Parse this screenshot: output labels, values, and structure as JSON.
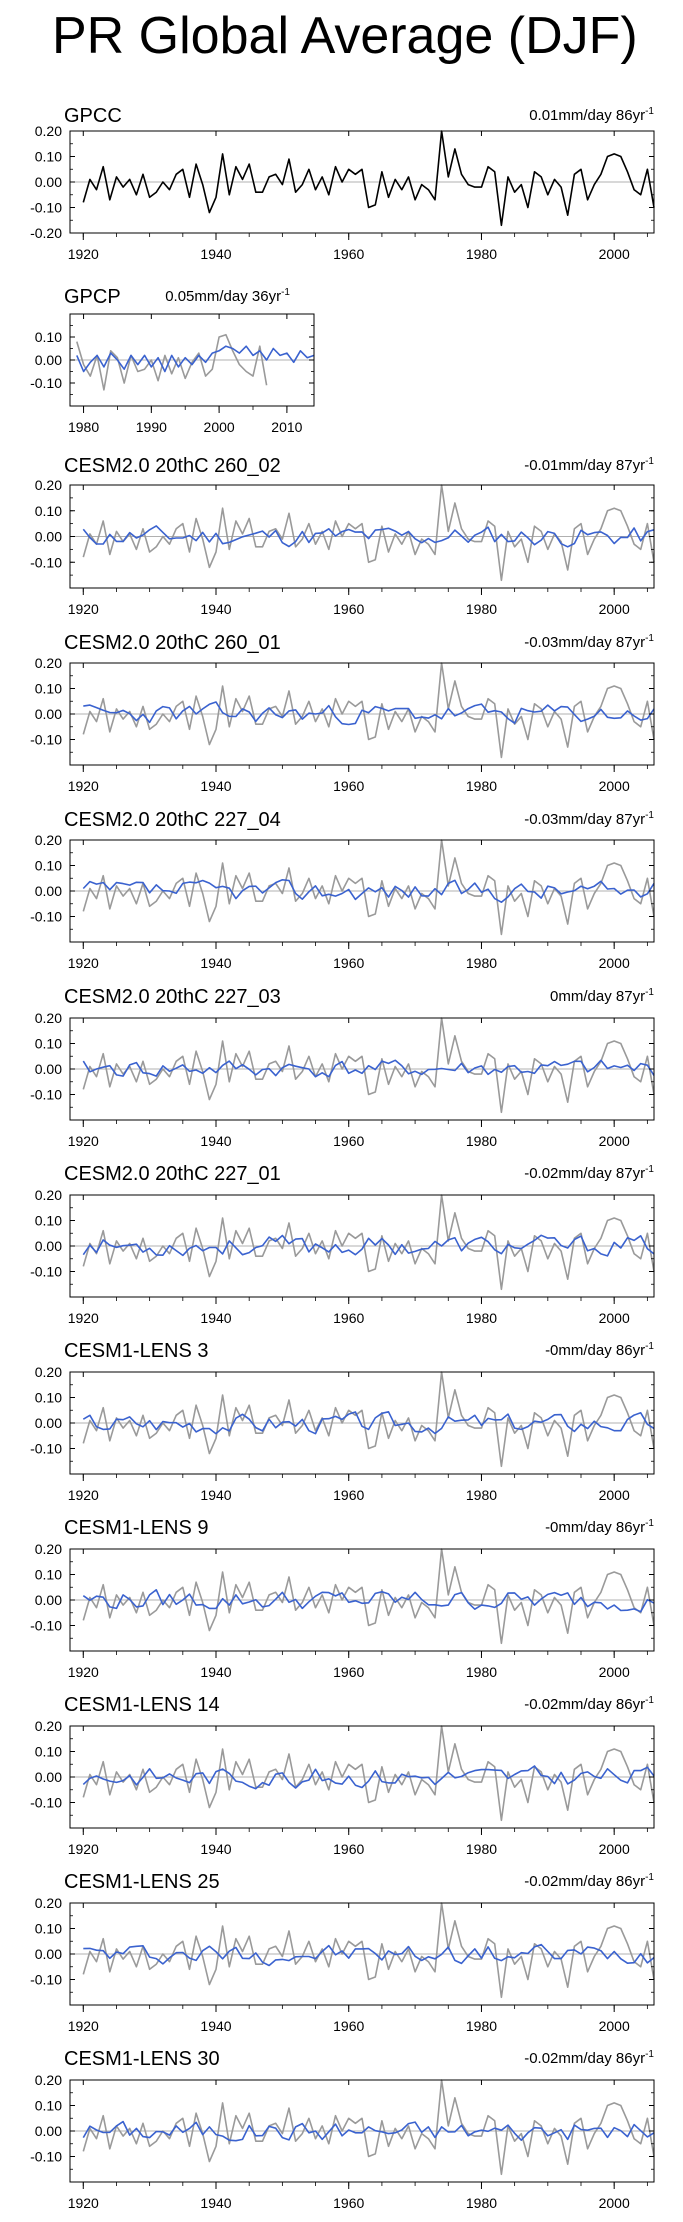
{
  "title": "PR Global Average (DJF)",
  "colors": {
    "observed": "#000000",
    "observed_overlay": "#9a9a9a",
    "model": "#3a62cf",
    "zero_line": "#b0b0b0"
  },
  "chart_data": [
    {
      "type": "line",
      "title": "GPCC",
      "trend_label": "0.01mm/day 86yr",
      "trend_superscript": "-1",
      "xlim": [
        1918,
        2006
      ],
      "ylim": [
        -0.2,
        0.2
      ],
      "yticks": [
        "0.20",
        "0.10",
        "0.00",
        "-0.10",
        "-0.20"
      ],
      "ytick_values": [
        0.2,
        0.1,
        0.0,
        -0.1,
        -0.2
      ],
      "xticks": [
        "1920",
        "1940",
        "1960",
        "1980",
        "2000"
      ],
      "xtick_values": [
        1920,
        1940,
        1960,
        1980,
        2000
      ],
      "series": [
        {
          "name": "GPCC",
          "role": "observed",
          "x_start": 1920,
          "values": [
            -0.08,
            0.01,
            -0.03,
            0.06,
            -0.07,
            0.02,
            -0.02,
            0.01,
            -0.05,
            0.03,
            -0.06,
            -0.04,
            0.0,
            -0.03,
            0.03,
            0.05,
            -0.06,
            0.07,
            -0.01,
            -0.12,
            -0.06,
            0.11,
            -0.05,
            0.06,
            0.01,
            0.07,
            -0.04,
            -0.04,
            0.02,
            0.03,
            -0.01,
            0.09,
            -0.04,
            -0.01,
            0.05,
            -0.03,
            0.02,
            -0.05,
            0.06,
            0.0,
            0.05,
            0.03,
            0.05,
            -0.1,
            -0.09,
            0.04,
            -0.06,
            0.01,
            -0.03,
            0.02,
            -0.07,
            -0.01,
            -0.03,
            -0.07,
            0.2,
            0.02,
            0.13,
            0.03,
            -0.01,
            -0.02,
            -0.02,
            0.06,
            0.04,
            -0.17,
            0.02,
            -0.04,
            -0.01,
            -0.1,
            0.04,
            0.02,
            -0.05,
            0.01,
            -0.02,
            -0.13,
            0.03,
            0.05,
            -0.07,
            -0.01,
            0.03,
            0.1,
            0.11,
            0.1,
            0.04,
            -0.03,
            -0.05,
            0.05,
            -0.1
          ]
        }
      ]
    },
    {
      "type": "line",
      "title": "GPCP",
      "trend_label": "0.05mm/day 36yr",
      "trend_superscript": "-1",
      "xlim": [
        1978,
        2014
      ],
      "ylim": [
        -0.2,
        0.2
      ],
      "yticks": [
        "0.10",
        "0.00",
        "-0.10"
      ],
      "ytick_values": [
        0.1,
        0.0,
        -0.1
      ],
      "xticks": [
        "1980",
        "1990",
        "2000",
        "2010"
      ],
      "xtick_values": [
        1980,
        1990,
        2000,
        2010
      ],
      "series": [
        {
          "name": "Observed (grey)",
          "role": "overlay",
          "x_start": 1979,
          "values": [
            0.08,
            -0.02,
            -0.07,
            0.02,
            -0.13,
            0.04,
            0.01,
            -0.1,
            0.02,
            -0.05,
            -0.04,
            0.0,
            -0.09,
            0.02,
            -0.06,
            0.01,
            -0.08,
            -0.01,
            0.03,
            -0.07,
            -0.04,
            0.1,
            0.11,
            0.04,
            -0.02,
            -0.05,
            -0.07,
            0.06,
            -0.11
          ]
        },
        {
          "name": "GPCP",
          "role": "model",
          "x_start": 1979,
          "values": [
            0.02,
            -0.05,
            -0.01,
            0.02,
            -0.03,
            0.03,
            0.0,
            -0.04,
            0.02,
            -0.02,
            0.02,
            -0.03,
            0.01,
            -0.05,
            0.02,
            -0.03,
            0.01,
            -0.02,
            0.02,
            -0.01,
            0.03,
            0.04,
            0.06,
            0.05,
            0.03,
            0.06,
            0.02,
            0.04,
            0.0,
            0.05,
            0.02,
            0.03,
            -0.01,
            0.04,
            0.01,
            0.02
          ]
        }
      ]
    },
    {
      "type": "line",
      "title": "CESM2.0 20thC 260_02",
      "trend_label": "-0.01mm/day 87yr",
      "trend_superscript": "-1",
      "xlim": [
        1918,
        2006
      ],
      "ylim": [
        -0.2,
        0.2
      ],
      "yticks": [
        "0.20",
        "0.10",
        "0.00",
        "-0.10"
      ],
      "ytick_values": [
        0.2,
        0.1,
        0.0,
        -0.1
      ],
      "xticks": [
        "1920",
        "1940",
        "1960",
        "1980",
        "2000"
      ],
      "xtick_values": [
        1920,
        1940,
        1960,
        1980,
        2000
      ],
      "series": [
        {
          "name": "Observed (grey)",
          "role": "overlay",
          "x_start": 1920,
          "ref": "gpcc"
        },
        {
          "name": "260_02",
          "role": "model",
          "x_start": 1920,
          "seed": 11,
          "amp": 0.022,
          "bias": 0.0
        }
      ]
    },
    {
      "type": "line",
      "title": "CESM2.0 20thC 260_01",
      "trend_label": "-0.03mm/day 87yr",
      "trend_superscript": "-1",
      "xlim": [
        1918,
        2006
      ],
      "ylim": [
        -0.2,
        0.2
      ],
      "yticks": [
        "0.20",
        "0.10",
        "0.00",
        "-0.10"
      ],
      "ytick_values": [
        0.2,
        0.1,
        0.0,
        -0.1
      ],
      "xticks": [
        "1920",
        "1940",
        "1960",
        "1980",
        "2000"
      ],
      "xtick_values": [
        1920,
        1940,
        1960,
        1980,
        2000
      ],
      "series": [
        {
          "name": "Observed (grey)",
          "role": "overlay",
          "x_start": 1920,
          "ref": "gpcc"
        },
        {
          "name": "260_01",
          "role": "model",
          "x_start": 1920,
          "seed": 23,
          "amp": 0.022,
          "bias": 0.0
        }
      ]
    },
    {
      "type": "line",
      "title": "CESM2.0 20thC 227_04",
      "trend_label": "-0.03mm/day 87yr",
      "trend_superscript": "-1",
      "xlim": [
        1918,
        2006
      ],
      "ylim": [
        -0.2,
        0.2
      ],
      "yticks": [
        "0.20",
        "0.10",
        "0.00",
        "-0.10"
      ],
      "ytick_values": [
        0.2,
        0.1,
        0.0,
        -0.1
      ],
      "xticks": [
        "1920",
        "1940",
        "1960",
        "1980",
        "2000"
      ],
      "xtick_values": [
        1920,
        1940,
        1960,
        1980,
        2000
      ],
      "series": [
        {
          "name": "Observed (grey)",
          "role": "overlay",
          "x_start": 1920,
          "ref": "gpcc"
        },
        {
          "name": "227_04",
          "role": "model",
          "x_start": 1920,
          "seed": 37,
          "amp": 0.022,
          "bias": 0.0
        }
      ]
    },
    {
      "type": "line",
      "title": "CESM2.0 20thC 227_03",
      "trend_label": "0mm/day 87yr",
      "trend_superscript": "-1",
      "xlim": [
        1918,
        2006
      ],
      "ylim": [
        -0.2,
        0.2
      ],
      "yticks": [
        "0.20",
        "0.10",
        "0.00",
        "-0.10"
      ],
      "ytick_values": [
        0.2,
        0.1,
        0.0,
        -0.1
      ],
      "xticks": [
        "1920",
        "1940",
        "1960",
        "1980",
        "2000"
      ],
      "xtick_values": [
        1920,
        1940,
        1960,
        1980,
        2000
      ],
      "series": [
        {
          "name": "Observed (grey)",
          "role": "overlay",
          "x_start": 1920,
          "ref": "gpcc"
        },
        {
          "name": "227_03",
          "role": "model",
          "x_start": 1920,
          "seed": 41,
          "amp": 0.02,
          "bias": 0.0
        }
      ]
    },
    {
      "type": "line",
      "title": "CESM2.0 20thC 227_01",
      "trend_label": "-0.02mm/day 87yr",
      "trend_superscript": "-1",
      "xlim": [
        1918,
        2006
      ],
      "ylim": [
        -0.2,
        0.2
      ],
      "yticks": [
        "0.20",
        "0.10",
        "0.00",
        "-0.10"
      ],
      "ytick_values": [
        0.2,
        0.1,
        0.0,
        -0.1
      ],
      "xticks": [
        "1920",
        "1940",
        "1960",
        "1980",
        "2000"
      ],
      "xtick_values": [
        1920,
        1940,
        1960,
        1980,
        2000
      ],
      "series": [
        {
          "name": "Observed (grey)",
          "role": "overlay",
          "x_start": 1920,
          "ref": "gpcc"
        },
        {
          "name": "227_01",
          "role": "model",
          "x_start": 1920,
          "seed": 53,
          "amp": 0.022,
          "bias": 0.0
        }
      ]
    },
    {
      "type": "line",
      "title": "CESM1-LENS 3",
      "trend_label": "-0mm/day 86yr",
      "trend_superscript": "-1",
      "xlim": [
        1918,
        2006
      ],
      "ylim": [
        -0.2,
        0.2
      ],
      "yticks": [
        "0.20",
        "0.10",
        "0.00",
        "-0.10"
      ],
      "ytick_values": [
        0.2,
        0.1,
        0.0,
        -0.1
      ],
      "xticks": [
        "1920",
        "1940",
        "1960",
        "1980",
        "2000"
      ],
      "xtick_values": [
        1920,
        1940,
        1960,
        1980,
        2000
      ],
      "series": [
        {
          "name": "Observed (grey)",
          "role": "overlay",
          "x_start": 1920,
          "ref": "gpcc"
        },
        {
          "name": "LENS 3",
          "role": "model",
          "x_start": 1920,
          "seed": 67,
          "amp": 0.022,
          "bias": 0.0
        }
      ]
    },
    {
      "type": "line",
      "title": "CESM1-LENS 9",
      "trend_label": "-0mm/day 86yr",
      "trend_superscript": "-1",
      "xlim": [
        1918,
        2006
      ],
      "ylim": [
        -0.2,
        0.2
      ],
      "yticks": [
        "0.20",
        "0.10",
        "0.00",
        "-0.10"
      ],
      "ytick_values": [
        0.2,
        0.1,
        0.0,
        -0.1
      ],
      "xticks": [
        "1920",
        "1940",
        "1960",
        "1980",
        "2000"
      ],
      "xtick_values": [
        1920,
        1940,
        1960,
        1980,
        2000
      ],
      "series": [
        {
          "name": "Observed (grey)",
          "role": "overlay",
          "x_start": 1920,
          "ref": "gpcc"
        },
        {
          "name": "LENS 9",
          "role": "model",
          "x_start": 1920,
          "seed": 79,
          "amp": 0.022,
          "bias": 0.0
        }
      ]
    },
    {
      "type": "line",
      "title": "CESM1-LENS 14",
      "trend_label": "-0.02mm/day 86yr",
      "trend_superscript": "-1",
      "xlim": [
        1918,
        2006
      ],
      "ylim": [
        -0.2,
        0.2
      ],
      "yticks": [
        "0.20",
        "0.10",
        "0.00",
        "-0.10"
      ],
      "ytick_values": [
        0.2,
        0.1,
        0.0,
        -0.1
      ],
      "xticks": [
        "1920",
        "1940",
        "1960",
        "1980",
        "2000"
      ],
      "xtick_values": [
        1920,
        1940,
        1960,
        1980,
        2000
      ],
      "series": [
        {
          "name": "Observed (grey)",
          "role": "overlay",
          "x_start": 1920,
          "ref": "gpcc"
        },
        {
          "name": "LENS 14",
          "role": "model",
          "x_start": 1920,
          "seed": 83,
          "amp": 0.022,
          "bias": 0.0
        }
      ]
    },
    {
      "type": "line",
      "title": "CESM1-LENS 25",
      "trend_label": "-0.02mm/day 86yr",
      "trend_superscript": "-1",
      "xlim": [
        1918,
        2006
      ],
      "ylim": [
        -0.2,
        0.2
      ],
      "yticks": [
        "0.20",
        "0.10",
        "0.00",
        "-0.10"
      ],
      "ytick_values": [
        0.2,
        0.1,
        0.0,
        -0.1
      ],
      "xticks": [
        "1920",
        "1940",
        "1960",
        "1980",
        "2000"
      ],
      "xtick_values": [
        1920,
        1940,
        1960,
        1980,
        2000
      ],
      "series": [
        {
          "name": "Observed (grey)",
          "role": "overlay",
          "x_start": 1920,
          "ref": "gpcc"
        },
        {
          "name": "LENS 25",
          "role": "model",
          "x_start": 1920,
          "seed": 97,
          "amp": 0.022,
          "bias": 0.0
        }
      ]
    },
    {
      "type": "line",
      "title": "CESM1-LENS 30",
      "trend_label": "-0.02mm/day 86yr",
      "trend_superscript": "-1",
      "xlim": [
        1918,
        2006
      ],
      "ylim": [
        -0.2,
        0.2
      ],
      "yticks": [
        "0.20",
        "0.10",
        "0.00",
        "-0.10"
      ],
      "ytick_values": [
        0.2,
        0.1,
        0.0,
        -0.1
      ],
      "xticks": [
        "1920",
        "1940",
        "1960",
        "1980",
        "2000"
      ],
      "xtick_values": [
        1920,
        1940,
        1960,
        1980,
        2000
      ],
      "series": [
        {
          "name": "Observed (grey)",
          "role": "overlay",
          "x_start": 1920,
          "ref": "gpcc"
        },
        {
          "name": "LENS 30",
          "role": "model",
          "x_start": 1920,
          "seed": 101,
          "amp": 0.022,
          "bias": 0.0
        }
      ]
    }
  ]
}
